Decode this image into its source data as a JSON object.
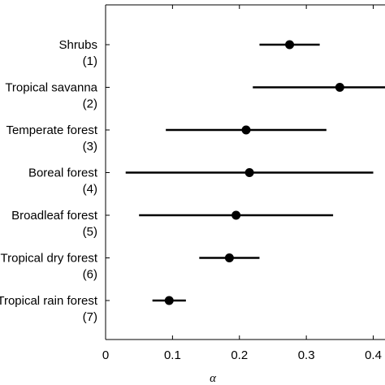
{
  "chart_data": {
    "type": "scatter",
    "title": "",
    "xlabel": "α",
    "ylabel": "",
    "xlim": [
      0,
      0.42
    ],
    "x_ticks": [
      {
        "value": 0,
        "label": "0"
      },
      {
        "value": 0.1,
        "label": "0.1"
      },
      {
        "value": 0.2,
        "label": "0.2"
      },
      {
        "value": 0.3,
        "label": "0.3"
      },
      {
        "value": 0.4,
        "label": "0.4"
      }
    ],
    "grid": false,
    "legend": "none",
    "marker_color": "#000000",
    "categories": [
      {
        "name": "Shrubs",
        "index_label": "(1)",
        "estimate": 0.275,
        "lower": 0.23,
        "upper": 0.32
      },
      {
        "name": "Tropical savanna",
        "index_label": "(2)",
        "estimate": 0.35,
        "lower": 0.22,
        "upper": 0.44
      },
      {
        "name": "Temperate forest",
        "index_label": "(3)",
        "estimate": 0.21,
        "lower": 0.09,
        "upper": 0.33
      },
      {
        "name": "Boreal forest",
        "index_label": "(4)",
        "estimate": 0.215,
        "lower": 0.03,
        "upper": 0.4
      },
      {
        "name": "Broadleaf forest",
        "index_label": "(5)",
        "estimate": 0.195,
        "lower": 0.05,
        "upper": 0.34
      },
      {
        "name": "Tropical dry forest",
        "index_label": "(6)",
        "estimate": 0.185,
        "lower": 0.14,
        "upper": 0.23
      },
      {
        "name": "Tropical rain forest",
        "index_label": "(7)",
        "estimate": 0.095,
        "lower": 0.07,
        "upper": 0.12
      }
    ]
  }
}
